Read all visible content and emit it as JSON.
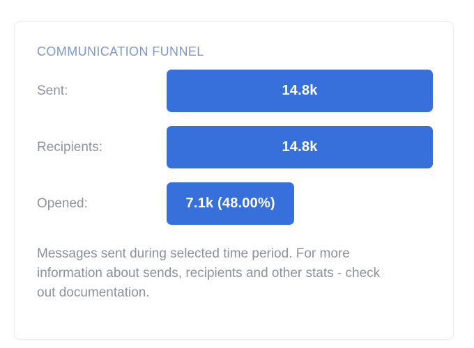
{
  "card": {
    "title": "COMMUNICATION FUNNEL",
    "description": "Messages sent during selected time period. For more information about sends, recipients and other stats - check out documentation.",
    "description_lines": [
      "Messages sent during selected time period. For more",
      "information about sends, recipients and other stats - check",
      "out documentation."
    ]
  },
  "chart_data": {
    "type": "bar",
    "variant": "funnel",
    "orientation": "horizontal",
    "title": "COMMUNICATION FUNNEL",
    "categories": [
      "Sent:",
      "Recipients:",
      "Opened:"
    ],
    "values": [
      14800,
      14800,
      7100
    ],
    "rows": [
      {
        "label": "Sent:",
        "value": 14800,
        "value_label": "14.8k",
        "width_pct": 100
      },
      {
        "label": "Recipients:",
        "value": 14800,
        "value_label": "14.8k",
        "width_pct": 100
      },
      {
        "label": "Opened:",
        "value": 7100,
        "value_label": "7.1k (48.00%)",
        "width_pct": 48
      }
    ],
    "opened_rate_pct": 48.0,
    "legend": "none",
    "axes": "none",
    "grid": false,
    "bar_color": "#3770DB",
    "bar_text_color": "#FFFFFF"
  },
  "colors": {
    "bar": "#3770DB",
    "title": "#7D97C9",
    "row_label": "#8D939D",
    "description": "#8B9199",
    "card_border": "#E9EBEE",
    "card_background": "#FFFFFF",
    "page_background": "#FFFFFF"
  }
}
